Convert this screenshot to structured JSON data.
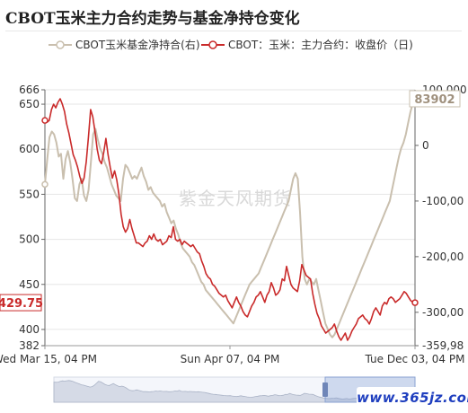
{
  "title": "CBOT玉米主力合约走势与基金净持仓变化",
  "legend": {
    "fund_series_label": "CBOT玉米基金净持合(右)",
    "price_series_label": "CBOT：玉米：主力合约：收盘价（日)"
  },
  "watermark": "紫金天风期货",
  "corner_mark": "www.365jz.com",
  "colors": {
    "price_line": "#c92a2a",
    "fund_line": "#c9bfae",
    "price_badge_bg": "#c92a2a",
    "fund_badge_text": "#a0917e"
  },
  "chart_data": {
    "type": "line",
    "x_start_label": "Wed Mar 15, 04 PM",
    "x_ticks": [
      "Wed Mar 15, 04 PM",
      "Sun Apr 07, 04 PM",
      "Tue Dec 03, 04 PM"
    ],
    "x_tick_fractions": [
      0.0,
      0.5,
      1.0
    ],
    "y_left": {
      "min": 382,
      "max": 666,
      "ticks": [
        "382",
        "400",
        "450",
        "500",
        "550",
        "600",
        "650",
        "666"
      ]
    },
    "y_right": {
      "min": -359980,
      "max": 100000,
      "ticks": [
        "0",
        "-100,00",
        "-200,00",
        "-300,00",
        "-359,98"
      ]
    },
    "y_right_top_label": "100,000",
    "last_price_label": "429.75",
    "last_fund_label": "83902",
    "series": [
      {
        "name": "CBOT：玉米：主力合约：收盘价（日)",
        "axis": "left",
        "last_value": 429.75,
        "values": [
          632,
          630,
          632,
          644,
          650,
          646,
          652,
          656,
          650,
          642,
          628,
          618,
          606,
          594,
          588,
          580,
          570,
          562,
          568,
          586,
          614,
          644,
          636,
          620,
          600,
          588,
          584,
          596,
          612,
          594,
          580,
          568,
          576,
          566,
          550,
          528,
          514,
          508,
          512,
          522,
          512,
          504,
          496,
          496,
          494,
          492,
          496,
          498,
          504,
          500,
          506,
          500,
          498,
          500,
          494,
          496,
          498,
          504,
          502,
          514,
          500,
          498,
          500,
          494,
          498,
          496,
          494,
          492,
          494,
          490,
          486,
          484,
          476,
          470,
          462,
          458,
          456,
          450,
          448,
          444,
          440,
          438,
          436,
          438,
          432,
          428,
          424,
          430,
          436,
          430,
          426,
          420,
          416,
          414,
          420,
          426,
          430,
          436,
          438,
          442,
          436,
          430,
          438,
          442,
          452,
          446,
          438,
          440,
          444,
          456,
          454,
          470,
          460,
          450,
          446,
          444,
          442,
          454,
          472,
          466,
          460,
          458,
          456,
          440,
          428,
          418,
          412,
          404,
          400,
          396,
          398,
          400,
          402,
          406,
          398,
          392,
          388,
          392,
          396,
          388,
          392,
          398,
          402,
          406,
          412,
          414,
          416,
          412,
          410,
          406,
          412,
          420,
          424,
          420,
          416,
          426,
          430,
          428,
          434,
          436,
          434,
          430,
          432,
          434,
          438,
          442,
          440,
          436,
          432,
          430,
          429.75
        ]
      },
      {
        "name": "CBOT玉米基金净持合(右)",
        "axis": "right",
        "last_value": 83902,
        "values": [
          -70000,
          -25000,
          15000,
          25000,
          20000,
          5000,
          -20000,
          -15000,
          -60000,
          -25000,
          -10000,
          -30000,
          -60000,
          -95000,
          -100000,
          -70000,
          -60000,
          -90000,
          -100000,
          -80000,
          -30000,
          20000,
          30000,
          10000,
          -5000,
          -15000,
          -30000,
          -40000,
          -55000,
          -70000,
          -80000,
          -90000,
          -95000,
          -100000,
          -60000,
          -35000,
          -40000,
          -50000,
          -60000,
          -55000,
          -60000,
          -50000,
          -40000,
          -55000,
          -65000,
          -80000,
          -75000,
          -85000,
          -90000,
          -95000,
          -100000,
          -110000,
          -105000,
          -120000,
          -130000,
          -140000,
          -135000,
          -150000,
          -160000,
          -175000,
          -185000,
          -190000,
          -195000,
          -200000,
          -210000,
          -215000,
          -225000,
          -235000,
          -245000,
          -250000,
          -260000,
          -265000,
          -270000,
          -275000,
          -280000,
          -285000,
          -290000,
          -295000,
          -300000,
          -305000,
          -310000,
          -315000,
          -320000,
          -310000,
          -300000,
          -290000,
          -280000,
          -270000,
          -260000,
          -250000,
          -245000,
          -240000,
          -235000,
          -230000,
          -220000,
          -210000,
          -200000,
          -190000,
          -180000,
          -170000,
          -160000,
          -150000,
          -140000,
          -130000,
          -120000,
          -110000,
          -100000,
          -80000,
          -60000,
          -50000,
          -60000,
          -120000,
          -200000,
          -240000,
          -250000,
          -240000,
          -245000,
          -250000,
          -240000,
          -260000,
          -280000,
          -300000,
          -320000,
          -330000,
          -340000,
          -345000,
          -340000,
          -330000,
          -320000,
          -310000,
          -300000,
          -290000,
          -280000,
          -270000,
          -260000,
          -250000,
          -240000,
          -230000,
          -220000,
          -210000,
          -200000,
          -190000,
          -180000,
          -170000,
          -160000,
          -150000,
          -140000,
          -130000,
          -120000,
          -110000,
          -100000,
          -80000,
          -60000,
          -40000,
          -20000,
          -5000,
          5000,
          20000,
          40000,
          60000,
          75000,
          83902
        ]
      }
    ],
    "grid": true,
    "legend_position": "top"
  },
  "zoom_bar": {
    "shown": true,
    "handles": 1
  }
}
